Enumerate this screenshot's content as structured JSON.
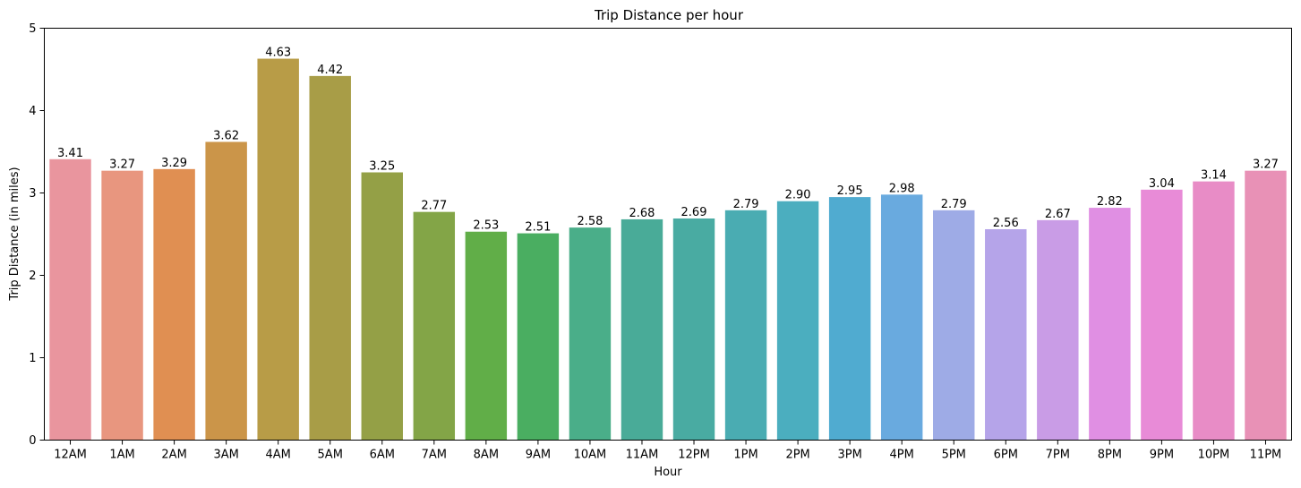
{
  "chart_data": {
    "type": "bar",
    "title": "Trip Distance per hour",
    "xlabel": "Hour",
    "ylabel": "Trip Distance (in miles)",
    "ylim": [
      0,
      5
    ],
    "yticks": [
      "0",
      "1",
      "2",
      "3",
      "4",
      "5"
    ],
    "categories": [
      "12AM",
      "1AM",
      "2AM",
      "3AM",
      "4AM",
      "5AM",
      "6AM",
      "7AM",
      "8AM",
      "9AM",
      "10AM",
      "11AM",
      "12PM",
      "1PM",
      "2PM",
      "3PM",
      "4PM",
      "5PM",
      "6PM",
      "7PM",
      "8PM",
      "9PM",
      "10PM",
      "11PM"
    ],
    "values": [
      3.41,
      3.27,
      3.29,
      3.62,
      4.63,
      4.42,
      3.25,
      2.77,
      2.53,
      2.51,
      2.58,
      2.68,
      2.69,
      2.79,
      2.9,
      2.95,
      2.98,
      2.79,
      2.56,
      2.67,
      2.82,
      3.04,
      3.14,
      3.27
    ],
    "value_labels": [
      "3.41",
      "3.27",
      "3.29",
      "3.62",
      "4.63",
      "4.42",
      "3.25",
      "2.77",
      "2.53",
      "2.51",
      "2.58",
      "2.68",
      "2.69",
      "2.79",
      "2.90",
      "2.95",
      "2.98",
      "2.79",
      "2.56",
      "2.67",
      "2.82",
      "3.04",
      "3.14",
      "3.27"
    ],
    "colors": [
      "#e9959e",
      "#e8967f",
      "#e08f52",
      "#cb9549",
      "#b89c47",
      "#a89d47",
      "#94a046",
      "#83a547",
      "#61ae48",
      "#4aae61",
      "#4aae89",
      "#49ab98",
      "#49aba2",
      "#4aacb2",
      "#4baebf",
      "#50abd0",
      "#69aadf",
      "#9eabe6",
      "#b5a4e9",
      "#c99ce6",
      "#e08fe3",
      "#e88bd7",
      "#e88cc6",
      "#e891b6"
    ],
    "grid": false,
    "legend": "none"
  }
}
